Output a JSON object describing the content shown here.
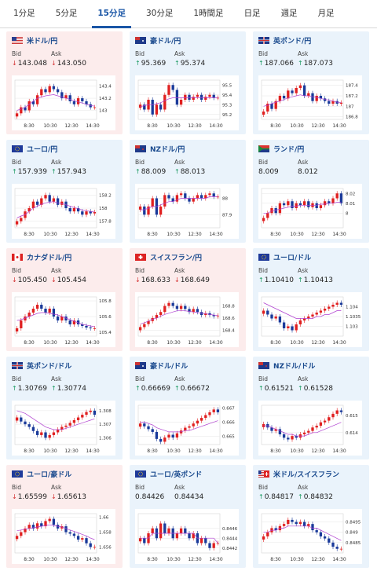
{
  "tabs": [
    "1分足",
    "5分足",
    "15分足",
    "30分足",
    "1時間足",
    "日足",
    "週足",
    "月足"
  ],
  "active_tab": 2,
  "labels": {
    "bid": "Bid",
    "ask": "Ask"
  },
  "x_ticks": [
    "8:30",
    "10:30",
    "12:30",
    "14:30"
  ],
  "colors": {
    "up_arrow": "#1a9a60",
    "down_arrow": "#d43030",
    "bull_candle": "#e02020",
    "bear_candle": "#1a3a9a",
    "ma_line": "#b040d0",
    "title": "#1a4a8e",
    "active_tab": "#1a56a6"
  },
  "cards": [
    {
      "name": "米ドル/円",
      "flag": "us",
      "dir": "down",
      "bid": "143.048",
      "ask": "143.050",
      "y_ticks": [
        "143.4",
        "143.2",
        "143"
      ],
      "chart_data": {
        "type": "candlestick",
        "ylim": [
          142.85,
          143.5
        ],
        "closes": [
          142.95,
          143.05,
          143.0,
          143.15,
          143.1,
          143.25,
          143.35,
          143.3,
          143.4,
          143.35,
          143.3,
          143.2,
          143.25,
          143.15,
          143.1,
          143.2,
          143.15,
          143.1,
          143.05,
          143.05
        ],
        "ma": [
          143.0,
          143.02,
          143.05,
          143.1,
          143.15,
          143.2,
          143.22,
          143.24,
          143.25,
          143.26,
          143.24,
          143.22,
          143.2,
          143.18,
          143.16,
          143.14,
          143.12,
          143.1,
          143.08,
          143.07
        ]
      }
    },
    {
      "name": "豪ドル/円",
      "flag": "au",
      "dir": "up",
      "bid": "95.369",
      "ask": "95.374",
      "y_ticks": [
        "95.5",
        "95.4",
        "95.3",
        "95.2"
      ],
      "chart_data": {
        "type": "candlestick",
        "ylim": [
          95.15,
          95.55
        ],
        "closes": [
          95.3,
          95.25,
          95.35,
          95.2,
          95.3,
          95.25,
          95.4,
          95.5,
          95.45,
          95.3,
          95.35,
          95.4,
          95.35,
          95.38,
          95.4,
          95.35,
          95.38,
          95.4,
          95.37,
          95.37
        ],
        "ma": [
          95.28,
          95.29,
          95.3,
          95.3,
          95.31,
          95.32,
          95.34,
          95.36,
          95.37,
          95.37,
          95.37,
          95.37,
          95.37,
          95.37,
          95.37,
          95.37,
          95.37,
          95.37,
          95.37,
          95.37
        ]
      }
    },
    {
      "name": "英ポンド/円",
      "flag": "gb",
      "dir": "up",
      "bid": "187.066",
      "ask": "187.073",
      "y_ticks": [
        "187.4",
        "187.2",
        "187",
        "186.8"
      ],
      "chart_data": {
        "type": "candlestick",
        "ylim": [
          186.75,
          187.5
        ],
        "closes": [
          186.9,
          187.05,
          186.95,
          187.1,
          187.2,
          187.15,
          187.3,
          187.25,
          187.35,
          187.4,
          187.2,
          187.25,
          187.1,
          187.2,
          187.15,
          187.1,
          187.05,
          187.1,
          187.05,
          187.07
        ],
        "ma": [
          187.0,
          187.02,
          187.05,
          187.08,
          187.1,
          187.13,
          187.16,
          187.18,
          187.2,
          187.22,
          187.2,
          187.2,
          187.18,
          187.17,
          187.15,
          187.13,
          187.12,
          187.1,
          187.08,
          187.07
        ]
      }
    },
    {
      "name": "ユーロ/円",
      "flag": "eu",
      "dir": "up",
      "bid": "157.939",
      "ask": "157.943",
      "y_ticks": [
        "158.2",
        "158",
        "157.8"
      ],
      "chart_data": {
        "type": "candlestick",
        "ylim": [
          157.7,
          158.3
        ],
        "closes": [
          157.8,
          157.85,
          157.95,
          158.0,
          158.1,
          158.05,
          158.15,
          158.2,
          158.1,
          158.15,
          158.05,
          158.1,
          158.0,
          157.95,
          158.0,
          157.95,
          157.9,
          157.95,
          157.92,
          157.94
        ],
        "ma": [
          157.85,
          157.88,
          157.9,
          157.95,
          158.0,
          158.03,
          158.06,
          158.08,
          158.09,
          158.1,
          158.08,
          158.07,
          158.05,
          158.03,
          158.01,
          157.99,
          157.97,
          157.96,
          157.95,
          157.94
        ]
      }
    },
    {
      "name": "NZドル/円",
      "flag": "nz",
      "dir": "up",
      "bid": "88.009",
      "ask": "88.013",
      "y_ticks": [
        "88",
        "87.9"
      ],
      "chart_data": {
        "type": "candlestick",
        "ylim": [
          87.82,
          88.06
        ],
        "closes": [
          87.95,
          87.9,
          87.95,
          88.0,
          87.9,
          87.95,
          88.02,
          88.0,
          87.98,
          88.02,
          88.03,
          88.0,
          87.98,
          88.0,
          88.02,
          88.0,
          88.02,
          88.03,
          88.01,
          88.01
        ],
        "ma": [
          87.93,
          87.93,
          87.94,
          87.95,
          87.95,
          87.96,
          87.97,
          87.98,
          87.98,
          87.99,
          88.0,
          88.0,
          88.0,
          88.0,
          88.0,
          88.0,
          88.0,
          88.01,
          88.01,
          88.01
        ]
      }
    },
    {
      "name": "ランド/円",
      "flag": "za",
      "dir": "none",
      "bid": "8.009",
      "ask": "8.012",
      "y_ticks": [
        "8.02",
        "8.01",
        "8"
      ],
      "chart_data": {
        "type": "candlestick",
        "ylim": [
          7.985,
          8.025
        ],
        "closes": [
          7.995,
          8.0,
          8.005,
          8.0,
          8.01,
          8.008,
          8.012,
          8.005,
          8.01,
          8.008,
          8.012,
          8.006,
          8.01,
          8.005,
          8.008,
          8.012,
          8.01,
          8.015,
          8.02,
          8.01
        ],
        "ma": [
          8.0,
          8.0,
          8.002,
          8.003,
          8.004,
          8.005,
          8.006,
          8.007,
          8.007,
          8.008,
          8.008,
          8.008,
          8.008,
          8.008,
          8.009,
          8.009,
          8.01,
          8.01,
          8.011,
          8.011
        ]
      }
    },
    {
      "name": "カナダドル/円",
      "flag": "ca",
      "dir": "down",
      "bid": "105.450",
      "ask": "105.454",
      "y_ticks": [
        "105.8",
        "105.6",
        "105.4"
      ],
      "chart_data": {
        "type": "candlestick",
        "ylim": [
          105.35,
          105.85
        ],
        "closes": [
          105.45,
          105.55,
          105.6,
          105.65,
          105.7,
          105.75,
          105.7,
          105.65,
          105.7,
          105.6,
          105.55,
          105.6,
          105.55,
          105.5,
          105.55,
          105.5,
          105.48,
          105.46,
          105.45,
          105.45
        ],
        "ma": [
          105.55,
          105.56,
          105.58,
          105.6,
          105.62,
          105.64,
          105.65,
          105.65,
          105.64,
          105.63,
          105.62,
          105.6,
          105.58,
          105.56,
          105.54,
          105.52,
          105.5,
          105.49,
          105.48,
          105.47
        ]
      }
    },
    {
      "name": "スイスフラン/円",
      "flag": "ch",
      "dir": "down",
      "bid": "168.633",
      "ask": "168.649",
      "y_ticks": [
        "168.8",
        "168.6",
        "168.4"
      ],
      "chart_data": {
        "type": "candlestick",
        "ylim": [
          168.3,
          168.95
        ],
        "closes": [
          168.45,
          168.5,
          168.55,
          168.6,
          168.65,
          168.7,
          168.8,
          168.85,
          168.8,
          168.75,
          168.8,
          168.75,
          168.7,
          168.75,
          168.7,
          168.65,
          168.68,
          168.65,
          168.63,
          168.64
        ],
        "ma": [
          168.5,
          168.52,
          168.55,
          168.58,
          168.6,
          168.63,
          168.66,
          168.68,
          168.7,
          168.72,
          168.72,
          168.72,
          168.71,
          168.7,
          168.69,
          168.68,
          168.67,
          168.66,
          168.65,
          168.64
        ]
      }
    },
    {
      "name": "ユーロ/ドル",
      "flag": "eu",
      "dir": "up",
      "bid": "1.10410",
      "ask": "1.10413",
      "y_ticks": [
        "1.104",
        "1.1035",
        "1.103"
      ],
      "chart_data": {
        "type": "candlestick",
        "ylim": [
          1.1025,
          1.1045
        ],
        "closes": [
          1.1038,
          1.1036,
          1.1034,
          1.1035,
          1.1032,
          1.1029,
          1.103,
          1.1028,
          1.1031,
          1.1033,
          1.1034,
          1.1035,
          1.1036,
          1.1037,
          1.1038,
          1.1039,
          1.104,
          1.1041,
          1.1042,
          1.1041
        ],
        "ma": [
          1.1042,
          1.1041,
          1.104,
          1.1039,
          1.1038,
          1.1037,
          1.1036,
          1.1035,
          1.1034,
          1.1034,
          1.1034,
          1.1034,
          1.1034,
          1.1035,
          1.1035,
          1.1036,
          1.1036,
          1.1037,
          1.1038,
          1.1038
        ]
      }
    },
    {
      "name": "英ポンド/ドル",
      "flag": "gb",
      "dir": "up",
      "bid": "1.30769",
      "ask": "1.30774",
      "y_ticks": [
        "1.308",
        "1.307",
        "1.306"
      ],
      "chart_data": {
        "type": "candlestick",
        "ylim": [
          1.3055,
          1.3084
        ],
        "closes": [
          1.3075,
          1.3072,
          1.307,
          1.3068,
          1.3065,
          1.3062,
          1.3064,
          1.306,
          1.3062,
          1.3064,
          1.3066,
          1.3068,
          1.3069,
          1.3071,
          1.3073,
          1.3075,
          1.3077,
          1.3079,
          1.308,
          1.3077
        ],
        "ma": [
          1.308,
          1.3079,
          1.3078,
          1.3076,
          1.3074,
          1.3072,
          1.307,
          1.3068,
          1.3067,
          1.3066,
          1.3066,
          1.3066,
          1.3067,
          1.3068,
          1.3069,
          1.307,
          1.3071,
          1.3072,
          1.3073,
          1.3074
        ]
      }
    },
    {
      "name": "豪ドル/ドル",
      "flag": "au",
      "dir": "up",
      "bid": "0.66669",
      "ask": "0.66672",
      "y_ticks": [
        "0.667",
        "0.666",
        "0.665"
      ],
      "chart_data": {
        "type": "candlestick",
        "ylim": [
          0.6644,
          0.6672
        ],
        "closes": [
          0.6659,
          0.6657,
          0.6655,
          0.6653,
          0.6648,
          0.6646,
          0.6649,
          0.6651,
          0.6649,
          0.6652,
          0.6654,
          0.6656,
          0.6657,
          0.6659,
          0.6661,
          0.6663,
          0.6665,
          0.6667,
          0.6669,
          0.6667
        ],
        "ma": [
          0.666,
          0.666,
          0.6659,
          0.6658,
          0.6656,
          0.6655,
          0.6654,
          0.6653,
          0.6653,
          0.6653,
          0.6653,
          0.6654,
          0.6654,
          0.6655,
          0.6656,
          0.6657,
          0.6658,
          0.6659,
          0.666,
          0.6661
        ]
      }
    },
    {
      "name": "NZドル/ドル",
      "flag": "nz",
      "dir": "up",
      "bid": "0.61521",
      "ask": "0.61528",
      "y_ticks": [
        "0.615",
        "0.614"
      ],
      "chart_data": {
        "type": "candlestick",
        "ylim": [
          0.6133,
          0.6156
        ],
        "closes": [
          0.6145,
          0.6143,
          0.6141,
          0.6142,
          0.6139,
          0.6137,
          0.6136,
          0.6138,
          0.6137,
          0.6139,
          0.614,
          0.6141,
          0.6143,
          0.6144,
          0.6146,
          0.6147,
          0.6149,
          0.6151,
          0.6153,
          0.6152
        ],
        "ma": [
          0.6144,
          0.6144,
          0.6143,
          0.6142,
          0.6141,
          0.614,
          0.6139,
          0.6139,
          0.6138,
          0.6138,
          0.6138,
          0.6139,
          0.614,
          0.614,
          0.6141,
          0.6142,
          0.6143,
          0.6144,
          0.6145,
          0.6146
        ]
      }
    },
    {
      "name": "ユーロ/豪ドル",
      "flag": "eu",
      "dir": "down",
      "bid": "1.65599",
      "ask": "1.65613",
      "y_ticks": [
        "1.66",
        "1.658",
        "1.656"
      ],
      "chart_data": {
        "type": "candlestick",
        "ylim": [
          1.6552,
          1.6605
        ],
        "closes": [
          1.6575,
          1.658,
          1.6585,
          1.659,
          1.6585,
          1.6592,
          1.6588,
          1.6595,
          1.6598,
          1.659,
          1.6585,
          1.6588,
          1.658,
          1.6578,
          1.6575,
          1.657,
          1.6572,
          1.6565,
          1.656,
          1.656
        ],
        "ma": [
          1.6582,
          1.6583,
          1.6584,
          1.6585,
          1.6586,
          1.6587,
          1.6588,
          1.6589,
          1.659,
          1.6589,
          1.6588,
          1.6587,
          1.6585,
          1.6583,
          1.6581,
          1.6579,
          1.6577,
          1.6575,
          1.6572,
          1.657
        ]
      }
    },
    {
      "name": "ユーロ/英ポンド",
      "flag": "eu",
      "dir": "none",
      "bid": "0.84426",
      "ask": "0.84434",
      "y_ticks": [
        "0.8446",
        "0.8444",
        "0.8442"
      ],
      "chart_data": {
        "type": "candlestick",
        "ylim": [
          0.8441,
          0.8449
        ],
        "closes": [
          0.8444,
          0.8443,
          0.8445,
          0.8446,
          0.8444,
          0.8447,
          0.8445,
          0.8446,
          0.8444,
          0.8445,
          0.8446,
          0.8445,
          0.8444,
          0.8445,
          0.8443,
          0.8444,
          0.8443,
          0.8442,
          0.8443,
          0.8443
        ],
        "ma": [
          0.8444,
          0.8444,
          0.8444,
          0.8445,
          0.8445,
          0.8445,
          0.8445,
          0.8445,
          0.8445,
          0.8445,
          0.8445,
          0.8445,
          0.8445,
          0.8445,
          0.8444,
          0.8444,
          0.8444,
          0.8444,
          0.8444,
          0.8443
        ]
      }
    },
    {
      "name": "米ドル/スイスフラン",
      "flag": "us-ch",
      "dir": "up",
      "bid": "0.84817",
      "ask": "0.84832",
      "y_ticks": [
        "0.8495",
        "0.849",
        "0.8485"
      ],
      "chart_data": {
        "type": "candlestick",
        "ylim": [
          0.848,
          0.8499
        ],
        "closes": [
          0.8488,
          0.849,
          0.8492,
          0.8491,
          0.8493,
          0.8494,
          0.8496,
          0.8495,
          0.8494,
          0.8495,
          0.8493,
          0.8494,
          0.8491,
          0.849,
          0.8488,
          0.8487,
          0.8485,
          0.8483,
          0.8482,
          0.8482
        ],
        "ma": [
          0.849,
          0.849,
          0.8491,
          0.8491,
          0.8492,
          0.8492,
          0.8493,
          0.8493,
          0.8493,
          0.8493,
          0.8493,
          0.8493,
          0.8492,
          0.8492,
          0.8491,
          0.849,
          0.8489,
          0.8488,
          0.8487,
          0.8486
        ]
      }
    }
  ]
}
